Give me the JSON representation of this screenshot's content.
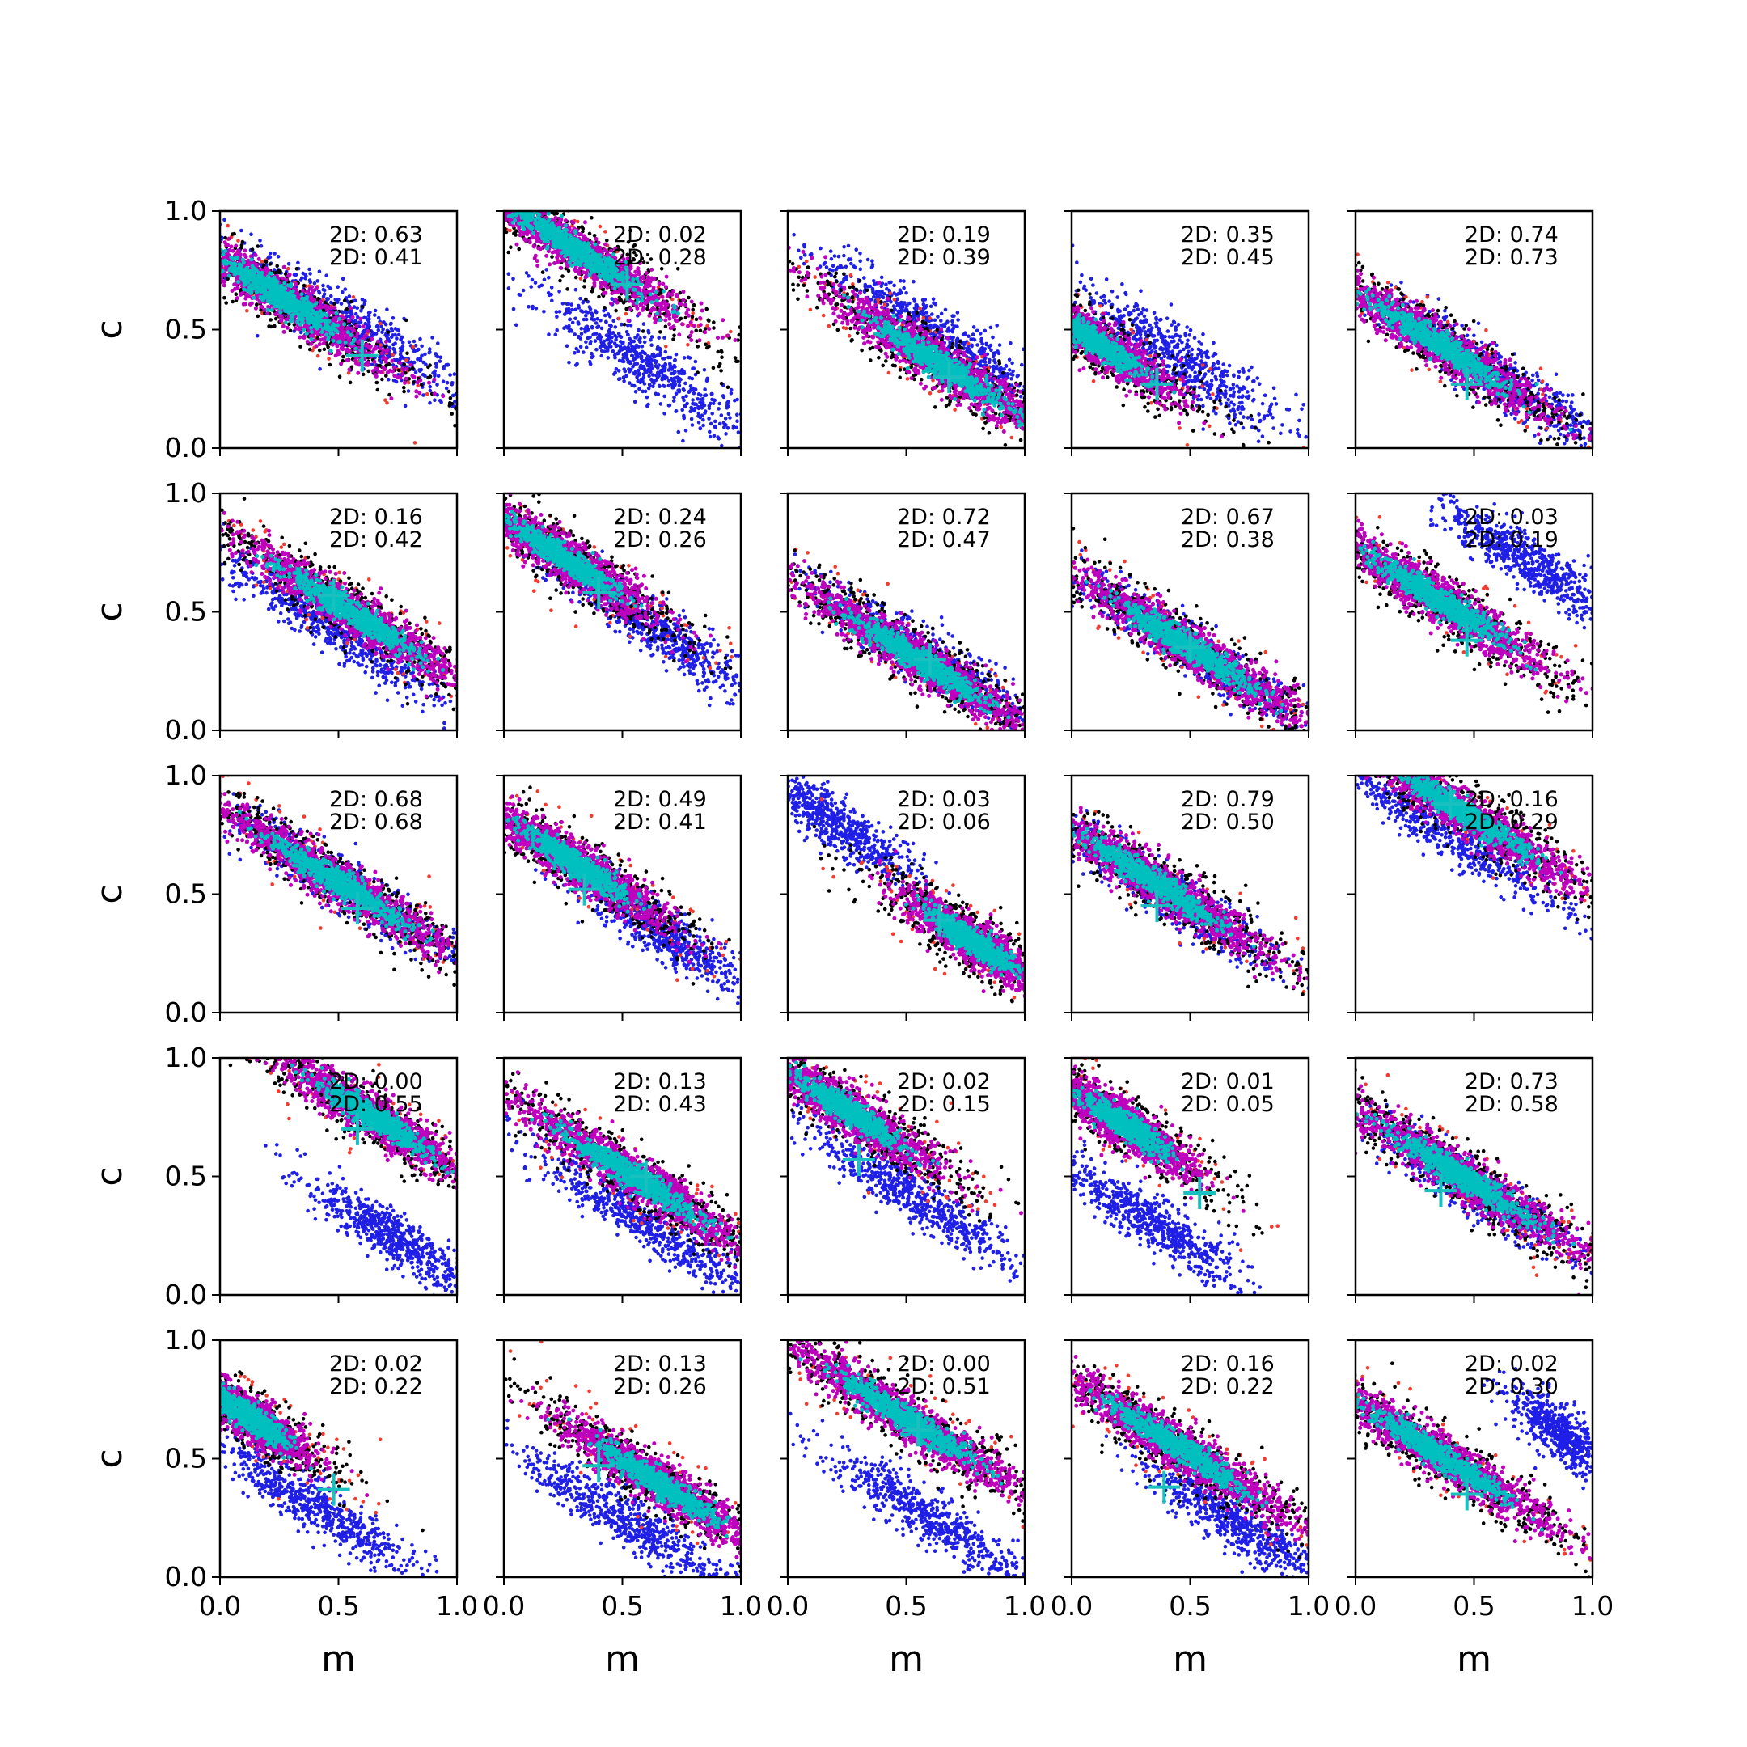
{
  "chart_data": {
    "type": "scatter",
    "layout": {
      "rows": 5,
      "cols": 5
    },
    "xlabel": "m",
    "ylabel": "c",
    "xlim": [
      0.0,
      1.0
    ],
    "ylim": [
      0.0,
      1.0
    ],
    "xticks": [
      "0.0",
      "0.5",
      "1.0"
    ],
    "yticks": [
      "0.0",
      "0.5",
      "1.0"
    ],
    "grid": false,
    "legend": "none",
    "colors": {
      "red": "#f23a2e",
      "black": "#000000",
      "magenta": "#bf00bf",
      "cyan": "#00bfbf",
      "blue": "#1f1fe6",
      "marker": "#18c0c0"
    },
    "panels": [
      {
        "labels": [
          "2D: 0.63",
          "2D: 0.41"
        ],
        "main": {
          "m": 0.25,
          "c": 0.64,
          "sm": 0.24,
          "sc": 0.05
        },
        "blue": {
          "m": 0.55,
          "c": 0.52,
          "sm": 0.22,
          "sc": 0.06
        },
        "cross": {
          "m": 0.6,
          "c": 0.39
        }
      },
      {
        "labels": [
          "2D: 0.02",
          "2D: 0.28"
        ],
        "main": {
          "m": 0.3,
          "c": 0.84,
          "sm": 0.24,
          "sc": 0.05
        },
        "blue": {
          "m": 0.6,
          "c": 0.35,
          "sm": 0.2,
          "sc": 0.06
        },
        "cross": {
          "m": 0.52,
          "c": 0.69
        }
      },
      {
        "labels": [
          "2D: 0.19",
          "2D: 0.39"
        ],
        "main": {
          "m": 0.65,
          "c": 0.35,
          "sm": 0.24,
          "sc": 0.05
        },
        "blue": {
          "m": 0.65,
          "c": 0.48,
          "sm": 0.22,
          "sc": 0.05
        },
        "cross": {
          "m": 0.68,
          "c": 0.3
        }
      },
      {
        "labels": [
          "2D: 0.35",
          "2D: 0.45"
        ],
        "main": {
          "m": 0.1,
          "c": 0.45,
          "sm": 0.18,
          "sc": 0.05
        },
        "blue": {
          "m": 0.45,
          "c": 0.38,
          "sm": 0.2,
          "sc": 0.06
        },
        "cross": {
          "m": 0.36,
          "c": 0.27
        }
      },
      {
        "labels": [
          "2D: 0.74",
          "2D: 0.73"
        ],
        "main": {
          "m": 0.35,
          "c": 0.44,
          "sm": 0.24,
          "sc": 0.05
        },
        "blue": {
          "m": 0.6,
          "c": 0.3,
          "sm": 0.22,
          "sc": 0.05
        },
        "cross": {
          "m": 0.47,
          "c": 0.27
        }
      },
      {
        "labels": [
          "2D: 0.16",
          "2D: 0.42"
        ],
        "main": {
          "m": 0.55,
          "c": 0.5,
          "sm": 0.24,
          "sc": 0.05
        },
        "blue": {
          "m": 0.45,
          "c": 0.45,
          "sm": 0.22,
          "sc": 0.05
        },
        "cross": {
          "m": 0.48,
          "c": 0.57
        }
      },
      {
        "labels": [
          "2D: 0.24",
          "2D: 0.26"
        ],
        "main": {
          "m": 0.25,
          "c": 0.73,
          "sm": 0.2,
          "sc": 0.05
        },
        "blue": {
          "m": 0.65,
          "c": 0.42,
          "sm": 0.22,
          "sc": 0.05
        },
        "cross": {
          "m": 0.4,
          "c": 0.58
        }
      },
      {
        "labels": [
          "2D: 0.72",
          "2D: 0.47"
        ],
        "main": {
          "m": 0.55,
          "c": 0.3,
          "sm": 0.25,
          "sc": 0.05
        },
        "blue": {
          "m": 0.6,
          "c": 0.3,
          "sm": 0.22,
          "sc": 0.05
        },
        "cross": {
          "m": 0.6,
          "c": 0.3
        }
      },
      {
        "labels": [
          "2D: 0.67",
          "2D: 0.38"
        ],
        "main": {
          "m": 0.5,
          "c": 0.35,
          "sm": 0.25,
          "sc": 0.05
        },
        "blue": {
          "m": 0.5,
          "c": 0.35,
          "sm": 0.22,
          "sc": 0.05
        },
        "cross": {
          "m": 0.5,
          "c": 0.35
        }
      },
      {
        "labels": [
          "2D: 0.03",
          "2D: 0.19"
        ],
        "main": {
          "m": 0.35,
          "c": 0.55,
          "sm": 0.24,
          "sc": 0.05
        },
        "blue": {
          "m": 0.72,
          "c": 0.72,
          "sm": 0.16,
          "sc": 0.05
        },
        "cross": {
          "m": 0.47,
          "c": 0.38
        }
      },
      {
        "labels": [
          "2D: 0.68",
          "2D: 0.68"
        ],
        "main": {
          "m": 0.5,
          "c": 0.55,
          "sm": 0.26,
          "sc": 0.05
        },
        "blue": {
          "m": 0.5,
          "c": 0.55,
          "sm": 0.22,
          "sc": 0.05
        },
        "cross": {
          "m": 0.58,
          "c": 0.44
        }
      },
      {
        "labels": [
          "2D: 0.49",
          "2D: 0.41"
        ],
        "main": {
          "m": 0.3,
          "c": 0.63,
          "sm": 0.2,
          "sc": 0.05
        },
        "blue": {
          "m": 0.65,
          "c": 0.35,
          "sm": 0.15,
          "sc": 0.05
        },
        "cross": {
          "m": 0.34,
          "c": 0.52
        }
      },
      {
        "labels": [
          "2D: 0.03",
          "2D: 0.06"
        ],
        "main": {
          "m": 0.78,
          "c": 0.3,
          "sm": 0.16,
          "sc": 0.05
        },
        "blue": {
          "m": 0.2,
          "c": 0.8,
          "sm": 0.14,
          "sc": 0.05
        },
        "cross": {
          "m": 0.64,
          "c": 0.39
        }
      },
      {
        "labels": [
          "2D: 0.79",
          "2D: 0.50"
        ],
        "main": {
          "m": 0.35,
          "c": 0.55,
          "sm": 0.24,
          "sc": 0.05
        },
        "blue": {
          "m": 0.4,
          "c": 0.5,
          "sm": 0.2,
          "sc": 0.05
        },
        "cross": {
          "m": 0.36,
          "c": 0.45
        }
      },
      {
        "labels": [
          "2D: 0.16",
          "2D: 0.29"
        ],
        "main": {
          "m": 0.45,
          "c": 0.85,
          "sm": 0.26,
          "sc": 0.05
        },
        "blue": {
          "m": 0.35,
          "c": 0.78,
          "sm": 0.24,
          "sc": 0.05
        },
        "cross": {
          "m": 0.4,
          "c": 0.88
        }
      },
      {
        "labels": [
          "2D: 0.00",
          "2D: 0.55"
        ],
        "main": {
          "m": 0.65,
          "c": 0.75,
          "sm": 0.2,
          "sc": 0.05
        },
        "blue": {
          "m": 0.72,
          "c": 0.25,
          "sm": 0.16,
          "sc": 0.05
        },
        "cross": {
          "m": 0.58,
          "c": 0.7
        }
      },
      {
        "labels": [
          "2D: 0.13",
          "2D: 0.43"
        ],
        "main": {
          "m": 0.55,
          "c": 0.5,
          "sm": 0.25,
          "sc": 0.05
        },
        "blue": {
          "m": 0.6,
          "c": 0.3,
          "sm": 0.22,
          "sc": 0.05
        },
        "cross": {
          "m": 0.6,
          "c": 0.5
        }
      },
      {
        "labels": [
          "2D: 0.02",
          "2D: 0.15"
        ],
        "main": {
          "m": 0.25,
          "c": 0.78,
          "sm": 0.2,
          "sc": 0.05
        },
        "blue": {
          "m": 0.52,
          "c": 0.42,
          "sm": 0.2,
          "sc": 0.05
        },
        "cross": {
          "m": 0.3,
          "c": 0.57
        }
      },
      {
        "labels": [
          "2D: 0.01",
          "2D: 0.05"
        ],
        "main": {
          "m": 0.22,
          "c": 0.72,
          "sm": 0.16,
          "sc": 0.05
        },
        "blue": {
          "m": 0.35,
          "c": 0.3,
          "sm": 0.16,
          "sc": 0.05
        },
        "cross": {
          "m": 0.54,
          "c": 0.43
        }
      },
      {
        "labels": [
          "2D: 0.73",
          "2D: 0.58"
        ],
        "main": {
          "m": 0.45,
          "c": 0.5,
          "sm": 0.26,
          "sc": 0.05
        },
        "blue": {
          "m": 0.5,
          "c": 0.45,
          "sm": 0.22,
          "sc": 0.05
        },
        "cross": {
          "m": 0.36,
          "c": 0.44
        }
      },
      {
        "labels": [
          "2D: 0.02",
          "2D: 0.22"
        ],
        "main": {
          "m": 0.12,
          "c": 0.68,
          "sm": 0.14,
          "sc": 0.05
        },
        "blue": {
          "m": 0.4,
          "c": 0.3,
          "sm": 0.2,
          "sc": 0.05
        },
        "cross": {
          "m": 0.48,
          "c": 0.37
        }
      },
      {
        "labels": [
          "2D: 0.13",
          "2D: 0.26"
        ],
        "main": {
          "m": 0.65,
          "c": 0.4,
          "sm": 0.22,
          "sc": 0.05
        },
        "blue": {
          "m": 0.5,
          "c": 0.25,
          "sm": 0.22,
          "sc": 0.05
        },
        "cross": {
          "m": 0.4,
          "c": 0.47
        }
      },
      {
        "labels": [
          "2D: 0.00",
          "2D: 0.51"
        ],
        "main": {
          "m": 0.5,
          "c": 0.67,
          "sm": 0.26,
          "sc": 0.05
        },
        "blue": {
          "m": 0.6,
          "c": 0.25,
          "sm": 0.2,
          "sc": 0.05
        },
        "cross": {
          "m": 0.55,
          "c": 0.62
        }
      },
      {
        "labels": [
          "2D: 0.16",
          "2D: 0.22"
        ],
        "main": {
          "m": 0.45,
          "c": 0.55,
          "sm": 0.26,
          "sc": 0.05
        },
        "blue": {
          "m": 0.7,
          "c": 0.22,
          "sm": 0.18,
          "sc": 0.05
        },
        "cross": {
          "m": 0.39,
          "c": 0.38
        }
      },
      {
        "labels": [
          "2D: 0.02",
          "2D: 0.30"
        ],
        "main": {
          "m": 0.35,
          "c": 0.52,
          "sm": 0.26,
          "sc": 0.05
        },
        "blue": {
          "m": 0.88,
          "c": 0.6,
          "sm": 0.1,
          "sc": 0.05
        },
        "cross": {
          "m": 0.47,
          "c": 0.35
        }
      }
    ]
  }
}
